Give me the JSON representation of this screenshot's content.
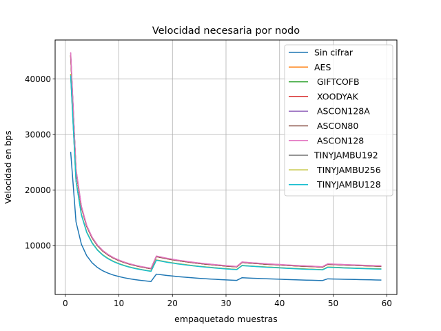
{
  "chart_data": {
    "type": "line",
    "title": "Velocidad necesaria por nodo",
    "xlabel": "empaquetado muestras",
    "ylabel": "Velocidad en bps",
    "xlim": [
      -1.9,
      61.9
    ],
    "ylim": [
      1250,
      47000
    ],
    "xticks": [
      0,
      10,
      20,
      30,
      40,
      50,
      60
    ],
    "yticks": [
      10000,
      20000,
      30000,
      40000
    ],
    "xtick_labels": [
      "0",
      "10",
      "20",
      "30",
      "40",
      "50",
      "60"
    ],
    "ytick_labels": [
      "10000",
      "20000",
      "30000",
      "40000"
    ],
    "grid": true,
    "legend_position": "top-right",
    "x_range": [
      1,
      59
    ],
    "series": [
      {
        "name": "Sin cifrar",
        "color": "#1f77b4",
        "factor": 1.0
      },
      {
        "name": "AES",
        "color": "#ff7f0e",
        "factor": 1.645
      },
      {
        "name": " GIFTCOFB",
        "color": "#2ca02c",
        "factor": 1.645
      },
      {
        "name": " XOODYAK",
        "color": "#d62728",
        "factor": 1.645
      },
      {
        "name": " ASCON128A",
        "color": "#9467bd",
        "factor": 1.66
      },
      {
        "name": " ASCON80",
        "color": "#8c564b",
        "factor": 1.645
      },
      {
        "name": " ASCON128",
        "color": "#e377c2",
        "factor": 1.665
      },
      {
        "name": "TINYJAMBU192",
        "color": "#7f7f7f",
        "factor": 1.52
      },
      {
        "name": " TINYJAMBU256",
        "color": "#bcbd22",
        "factor": 1.52
      },
      {
        "name": " TINYJAMBU128",
        "color": "#17becf",
        "factor": 1.51
      }
    ],
    "base_series": {
      "x": [
        1,
        2,
        3,
        4,
        5,
        6,
        7,
        8,
        9,
        10,
        11,
        12,
        13,
        14,
        15,
        16,
        17,
        18,
        19,
        20,
        21,
        22,
        23,
        24,
        25,
        26,
        27,
        28,
        29,
        30,
        31,
        32,
        33,
        34,
        35,
        36,
        37,
        38,
        39,
        40,
        41,
        42,
        43,
        44,
        45,
        46,
        47,
        48,
        49,
        50,
        51,
        52,
        53,
        54,
        55,
        56,
        57,
        58,
        59
      ],
      "y": [
        26900,
        14300,
        10300,
        8200,
        6950,
        6100,
        5500,
        5070,
        4730,
        4470,
        4250,
        4070,
        3920,
        3790,
        3680,
        3580,
        4900,
        4780,
        4660,
        4560,
        4460,
        4380,
        4300,
        4220,
        4150,
        4090,
        4030,
        3970,
        3920,
        3870,
        3820,
        3780,
        4260,
        4210,
        4170,
        4130,
        4090,
        4050,
        4020,
        3990,
        3950,
        3920,
        3890,
        3860,
        3830,
        3810,
        3780,
        3750,
        4060,
        4030,
        4010,
        3980,
        3960,
        3940,
        3920,
        3900,
        3880,
        3860,
        3840
      ]
    }
  }
}
